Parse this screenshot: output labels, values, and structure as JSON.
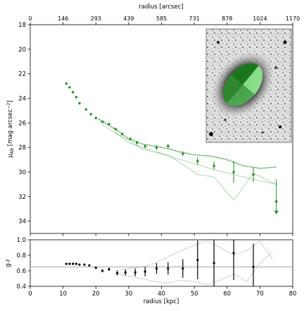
{
  "chart_data": [
    {
      "type": "scatter",
      "title": "",
      "xlabel_top": "radius [arcsec]",
      "xticks_top": [
        "0",
        "146",
        "293",
        "439",
        "585",
        "731",
        "878",
        "1024",
        "1170"
      ],
      "xlim": [
        0,
        80
      ],
      "ylabel": "μ_AB [mag arcsec⁻²]",
      "ylim": [
        18,
        35
      ],
      "yinverted": true,
      "yticks": [
        18,
        20,
        22,
        24,
        26,
        28,
        30,
        32,
        34
      ],
      "colors": {
        "profile": "#228b22",
        "inset_light": "#90ee90",
        "inset_dark": "#1a7a1a"
      },
      "inset": "galaxy-image-with-sector-ellipse",
      "series": [
        {
          "role": "profile",
          "x": [
            11,
            12,
            13,
            14,
            15,
            17,
            18.5,
            20,
            22,
            24,
            26,
            28,
            30.5,
            32.5,
            35,
            38.5,
            42,
            46.5,
            51,
            56,
            62,
            68,
            75
          ],
          "y": [
            22.8,
            23.1,
            23.5,
            23.9,
            24.4,
            24.9,
            25.3,
            25.6,
            25.9,
            26.1,
            26.5,
            26.9,
            27.3,
            27.6,
            27.9,
            28.0,
            27.9,
            28.5,
            29.1,
            29.5,
            30.0,
            30.2,
            32.4
          ],
          "err": [
            0.05,
            0.05,
            0.05,
            0.05,
            0.05,
            0.05,
            0.05,
            0.05,
            0.1,
            0.1,
            0.1,
            0.1,
            0.1,
            0.15,
            0.15,
            0.2,
            0.2,
            0.2,
            0.3,
            0.35,
            0.9,
            0.6,
            1.8
          ],
          "upper_limit_index": 22
        },
        {
          "role": "bound-outer",
          "x": [
            21,
            24,
            27,
            30,
            34,
            38,
            42,
            46,
            50,
            55,
            60,
            65,
            70,
            75
          ],
          "y": [
            25.7,
            26.2,
            26.7,
            27.3,
            27.7,
            27.9,
            28.1,
            28.4,
            28.6,
            28.7,
            29.0,
            29.5,
            29.7,
            29.6
          ]
        },
        {
          "role": "bound-inner",
          "x": [
            21,
            24,
            27,
            30,
            34,
            38,
            42,
            46,
            51,
            56,
            62,
            68,
            75
          ],
          "y": [
            25.9,
            26.5,
            27.0,
            27.6,
            28.0,
            28.3,
            28.7,
            29.0,
            29.4,
            29.8,
            30.2,
            30.6,
            31.0
          ]
        },
        {
          "role": "lower-dotted",
          "x": [
            26,
            30,
            34,
            38,
            42,
            46,
            51,
            56,
            62,
            68,
            75
          ],
          "y": [
            26.8,
            27.4,
            28.1,
            28.4,
            28.6,
            29.3,
            30.2,
            30.4,
            32.3,
            30.1,
            31.0
          ]
        }
      ]
    },
    {
      "type": "scatter",
      "xlabel": "radius [kpc]",
      "ylabel": "g-r",
      "xlim": [
        0,
        80
      ],
      "ylim": [
        0.4,
        1.0
      ],
      "xticks": [
        0,
        10,
        20,
        30,
        40,
        50,
        60,
        70,
        80
      ],
      "yticks": [
        0.4,
        0.6,
        0.8,
        1.0
      ],
      "reference_line": 0.65,
      "colors": {
        "points": "#000000",
        "bounds": "#999999",
        "refline": "#aaaaaa"
      },
      "series": [
        {
          "role": "color-profile",
          "x": [
            11,
            12,
            13,
            14,
            15,
            16.5,
            18,
            20,
            22,
            24,
            26.5,
            29,
            32,
            35,
            38.5,
            42,
            46.5,
            51,
            56,
            62,
            68
          ],
          "y": [
            0.69,
            0.69,
            0.69,
            0.69,
            0.68,
            0.68,
            0.67,
            0.64,
            0.6,
            0.62,
            0.57,
            0.58,
            0.58,
            0.59,
            0.63,
            0.63,
            0.63,
            0.74,
            0.7,
            0.83,
            0.65
          ],
          "err": [
            0.01,
            0.01,
            0.01,
            0.01,
            0.01,
            0.01,
            0.01,
            0.015,
            0.02,
            0.02,
            0.03,
            0.04,
            0.05,
            0.06,
            0.07,
            0.08,
            0.12,
            0.25,
            0.3,
            0.35,
            0.3
          ]
        },
        {
          "role": "bound-upper",
          "x": [
            26,
            30,
            34,
            38,
            42,
            46,
            50,
            54,
            58,
            62,
            66,
            70,
            74
          ],
          "y": [
            0.6,
            0.63,
            0.65,
            0.7,
            0.78,
            0.86,
            0.93,
            0.98,
            0.9,
            0.8,
            0.86,
            0.98,
            0.74
          ]
        },
        {
          "role": "bound-lower",
          "x": [
            26,
            30,
            34,
            38,
            42,
            46,
            50,
            54,
            58,
            62,
            66,
            70,
            74
          ],
          "y": [
            0.57,
            0.53,
            0.5,
            0.46,
            0.44,
            0.48,
            0.46,
            0.42,
            0.48,
            0.56,
            0.46,
            0.7,
            0.85
          ]
        }
      ]
    }
  ]
}
